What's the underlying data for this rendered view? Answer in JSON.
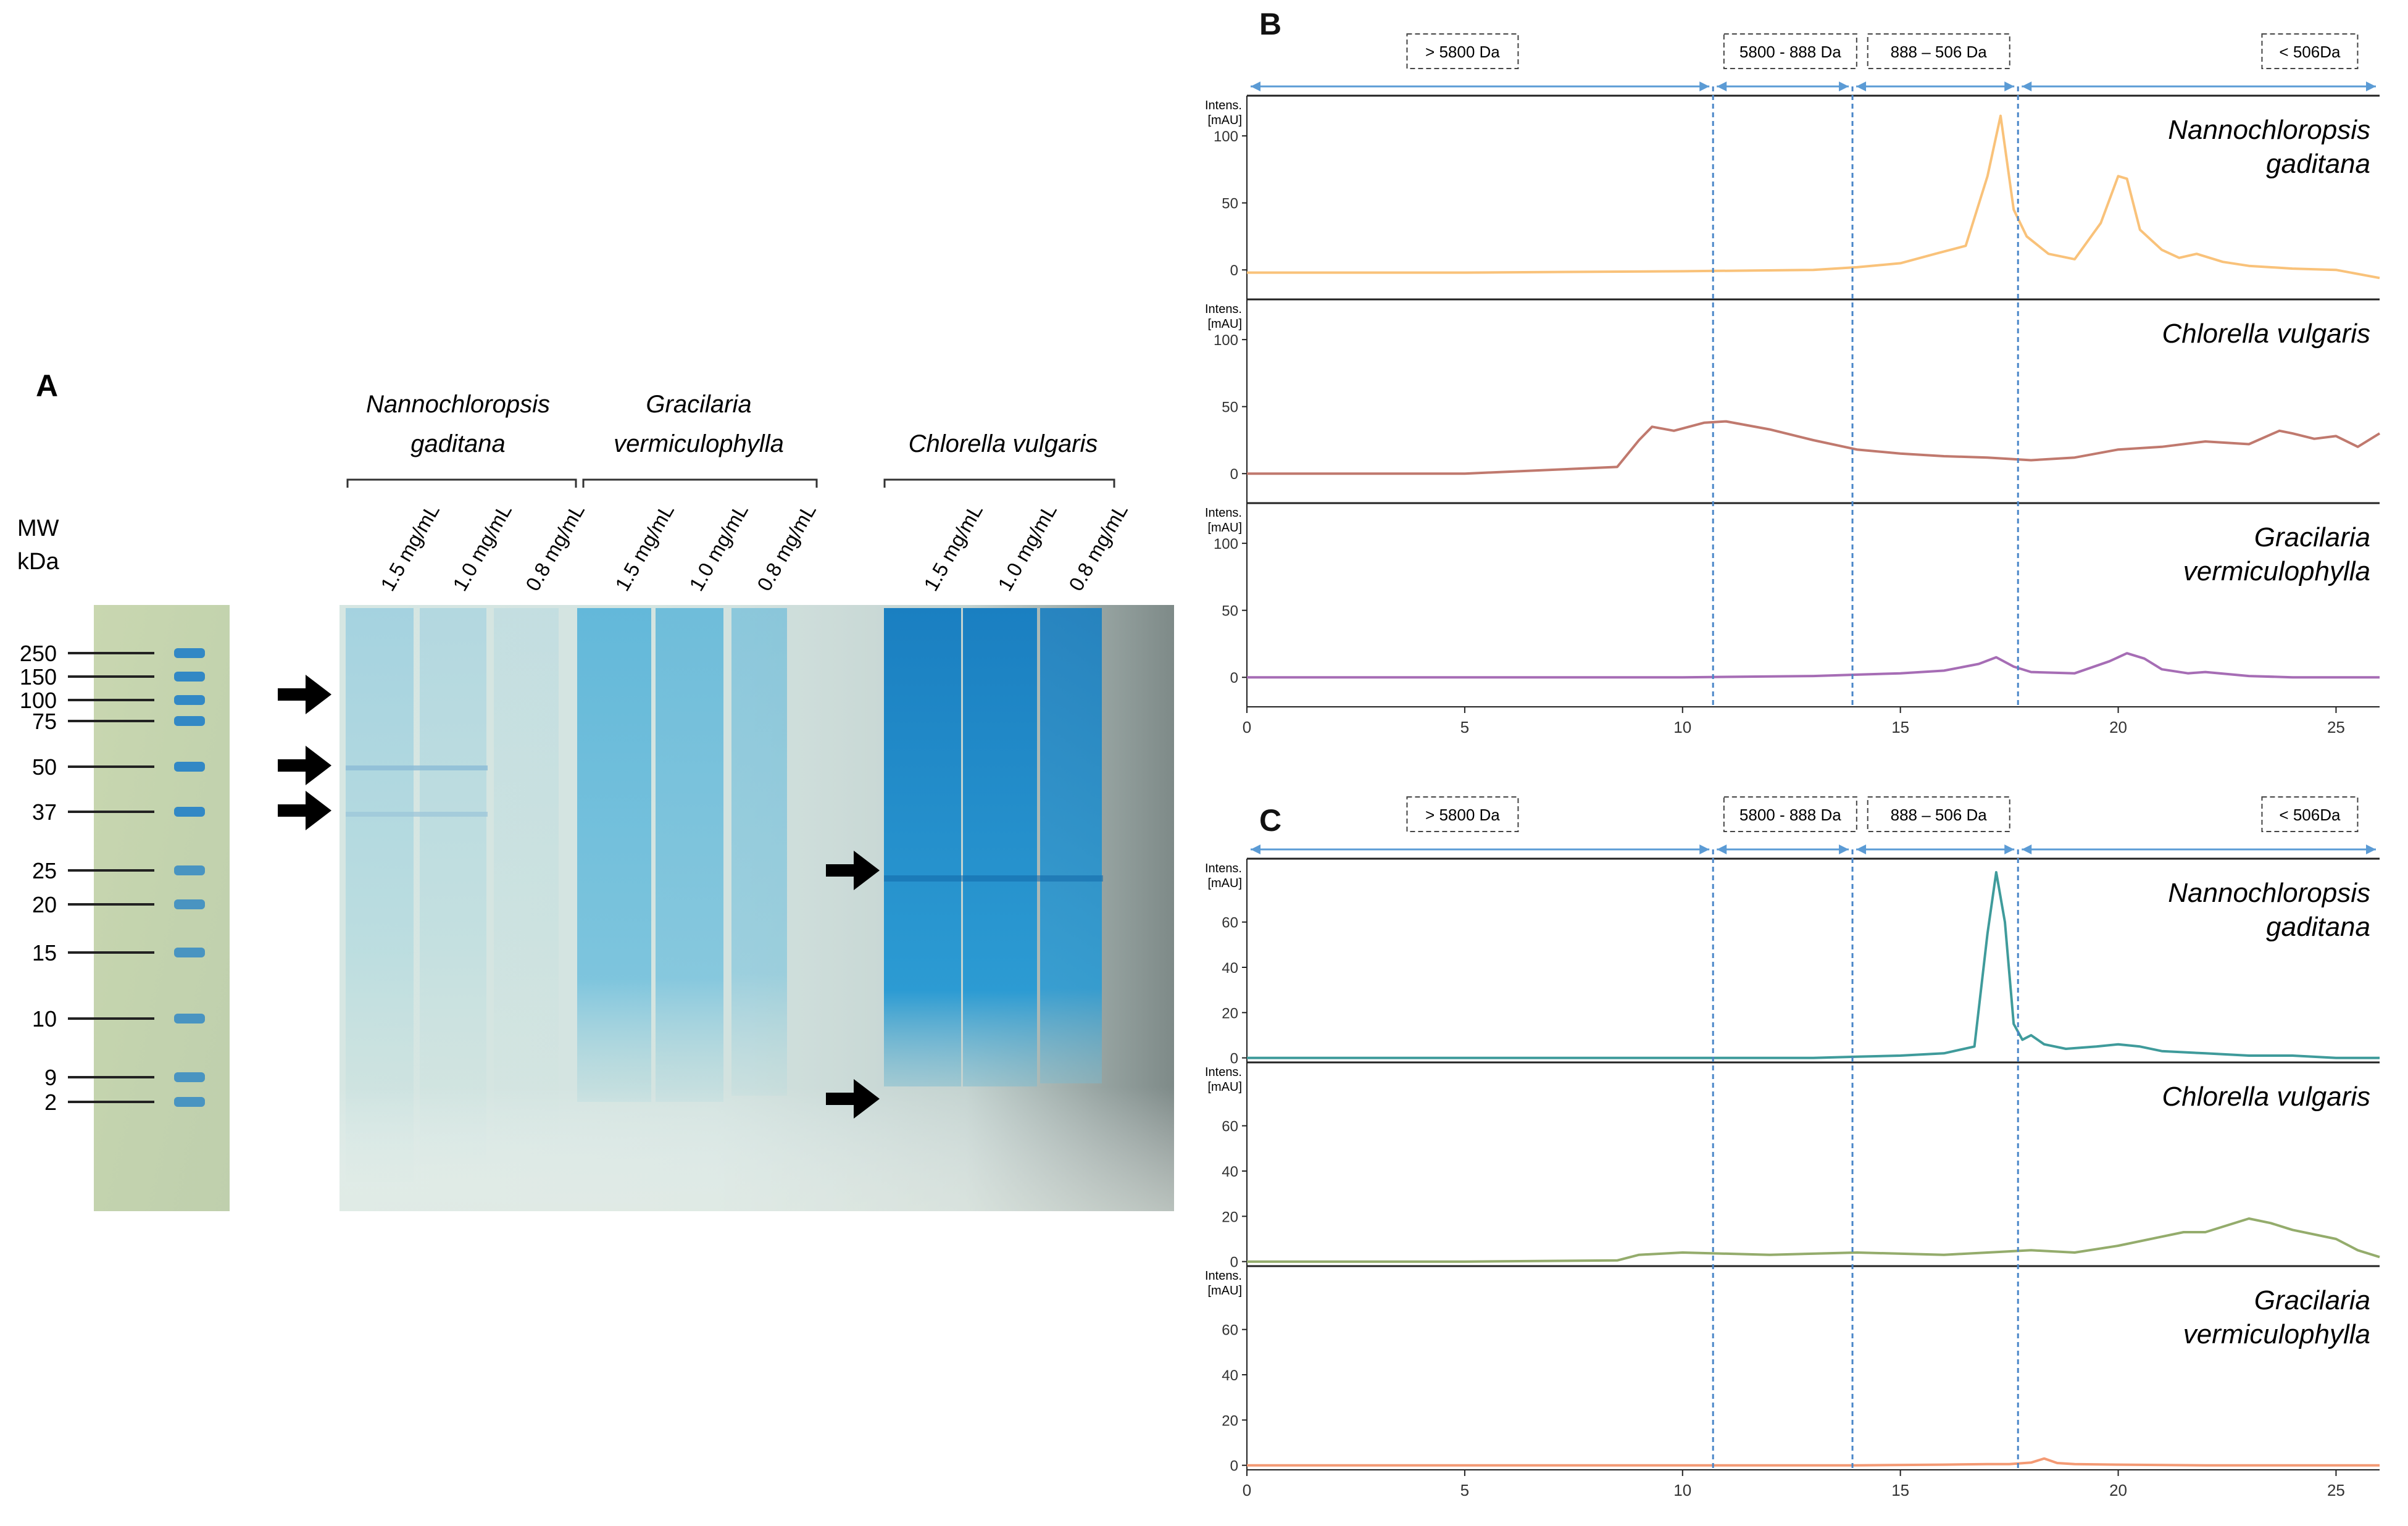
{
  "panel_a": {
    "label": "A",
    "mw_header": [
      "MW",
      "kDa"
    ],
    "markers": [
      "250",
      "150",
      "100",
      "75",
      "50",
      "37",
      "25",
      "20",
      "15",
      "10",
      "9",
      "2"
    ],
    "species": [
      {
        "name": [
          "Nannochloropsis",
          "gaditana"
        ]
      },
      {
        "name": [
          "Gracilaria",
          "vermiculophylla"
        ]
      },
      {
        "name": [
          "Chlorella vulgaris"
        ]
      }
    ],
    "concentrations": [
      "1.5 mg/mL",
      "1.0 mg/mL",
      "0.8 mg/mL"
    ]
  },
  "chart_data": [
    {
      "type": "line",
      "panel": "B",
      "x_range": [
        0,
        26
      ],
      "x_ticks": [
        "0",
        "5",
        "10",
        "15",
        "20",
        "25"
      ],
      "y_axis_label": [
        "Intens.",
        "[mAU]"
      ],
      "regions": [
        "> 5800 Da",
        "5800 - 888 Da",
        "888 – 506 Da",
        "< 506Da"
      ],
      "region_boundaries": [
        10.7,
        13.9,
        17.7
      ],
      "subplots": [
        {
          "name": [
            "Nannochloropsis",
            "gaditana"
          ],
          "color": "#f9c27a",
          "y_range": [
            -22,
            130
          ],
          "y_ticks": [
            0,
            50,
            100
          ],
          "x": [
            0,
            5,
            10,
            13,
            14,
            15,
            15.8,
            16.5,
            17,
            17.3,
            17.6,
            17.9,
            18.4,
            19,
            19.6,
            20,
            20.2,
            20.5,
            21,
            21.4,
            21.8,
            22.4,
            23,
            24,
            25,
            26
          ],
          "y": [
            -2,
            -2,
            -1,
            0,
            2,
            5,
            12,
            18,
            70,
            115,
            45,
            25,
            12,
            8,
            35,
            70,
            68,
            30,
            15,
            9,
            12,
            6,
            3,
            1,
            0,
            -6
          ]
        },
        {
          "name": [
            "Chlorella vulgaris"
          ],
          "color": "#c0796e",
          "y_range": [
            -22,
            130
          ],
          "y_ticks": [
            0,
            50,
            100
          ],
          "x": [
            0,
            5,
            8.5,
            9,
            9.3,
            9.8,
            10.5,
            11,
            12,
            13,
            14,
            15,
            16,
            17,
            18,
            19,
            20,
            21,
            22,
            23,
            23.7,
            24,
            24.5,
            25,
            25.5,
            26
          ],
          "y": [
            0,
            0,
            5,
            25,
            35,
            32,
            38,
            39,
            33,
            25,
            18,
            15,
            13,
            12,
            10,
            12,
            18,
            20,
            24,
            22,
            32,
            30,
            26,
            28,
            20,
            30
          ]
        },
        {
          "name": [
            "Gracilaria",
            "vermiculophylla"
          ],
          "color": "#a66db5",
          "y_range": [
            -22,
            130
          ],
          "y_ticks": [
            0,
            50,
            100
          ],
          "x": [
            0,
            5,
            10,
            13,
            14,
            15,
            16,
            16.8,
            17.2,
            17.6,
            18,
            19,
            19.8,
            20.2,
            20.6,
            21,
            21.6,
            22,
            23,
            24,
            25,
            26
          ],
          "y": [
            0,
            0,
            0,
            1,
            2,
            3,
            5,
            10,
            15,
            8,
            4,
            3,
            12,
            18,
            14,
            6,
            3,
            4,
            1,
            0,
            0,
            0
          ]
        }
      ]
    },
    {
      "type": "line",
      "panel": "C",
      "x_range": [
        0,
        26
      ],
      "x_ticks": [
        "0",
        "5",
        "10",
        "15",
        "20",
        "25"
      ],
      "y_axis_label": [
        "Intens.",
        "[mAU]"
      ],
      "regions": [
        "> 5800 Da",
        "5800 - 888 Da",
        "888 – 506 Da",
        "< 506Da"
      ],
      "region_boundaries": [
        10.7,
        13.9,
        17.7
      ],
      "subplots": [
        {
          "name": [
            "Nannochloropsis",
            "gaditana"
          ],
          "color": "#3f9b9b",
          "y_range": [
            -2,
            88
          ],
          "y_ticks": [
            0,
            20,
            40,
            60
          ],
          "x": [
            0,
            5,
            10,
            13,
            14,
            15,
            16,
            16.7,
            17,
            17.2,
            17.4,
            17.6,
            17.8,
            18,
            18.3,
            18.8,
            19.5,
            20,
            20.5,
            21,
            22,
            23,
            24,
            25,
            26
          ],
          "y": [
            0,
            0,
            0,
            0,
            0.5,
            1,
            2,
            5,
            55,
            82,
            60,
            15,
            8,
            10,
            6,
            4,
            5,
            6,
            5,
            3,
            2,
            1,
            1,
            0,
            0
          ]
        },
        {
          "name": [
            "Chlorella vulgaris"
          ],
          "color": "#94ac6c",
          "y_range": [
            -2,
            88
          ],
          "y_ticks": [
            0,
            20,
            40,
            60
          ],
          "x": [
            0,
            5,
            8.5,
            9,
            10,
            12,
            14,
            16,
            17,
            18,
            19,
            20,
            21,
            21.5,
            22,
            22.5,
            23,
            23.5,
            24,
            25,
            25.5,
            26
          ],
          "y": [
            0,
            0,
            0.5,
            3,
            4,
            3,
            4,
            3,
            4,
            5,
            4,
            7,
            11,
            13,
            13,
            16,
            19,
            17,
            14,
            10,
            5,
            2
          ]
        },
        {
          "name": [
            "Gracilaria",
            "vermiculophylla"
          ],
          "color": "#f49a74",
          "y_range": [
            -2,
            88
          ],
          "y_ticks": [
            0,
            20,
            40,
            60
          ],
          "x": [
            0,
            5,
            10,
            14,
            16,
            17,
            17.5,
            18,
            18.3,
            18.6,
            19,
            20,
            22,
            24,
            26
          ],
          "y": [
            0,
            0,
            0,
            0,
            0.3,
            0.5,
            0.5,
            1.2,
            3,
            1,
            0.5,
            0.3,
            0,
            0,
            0
          ]
        }
      ]
    }
  ]
}
